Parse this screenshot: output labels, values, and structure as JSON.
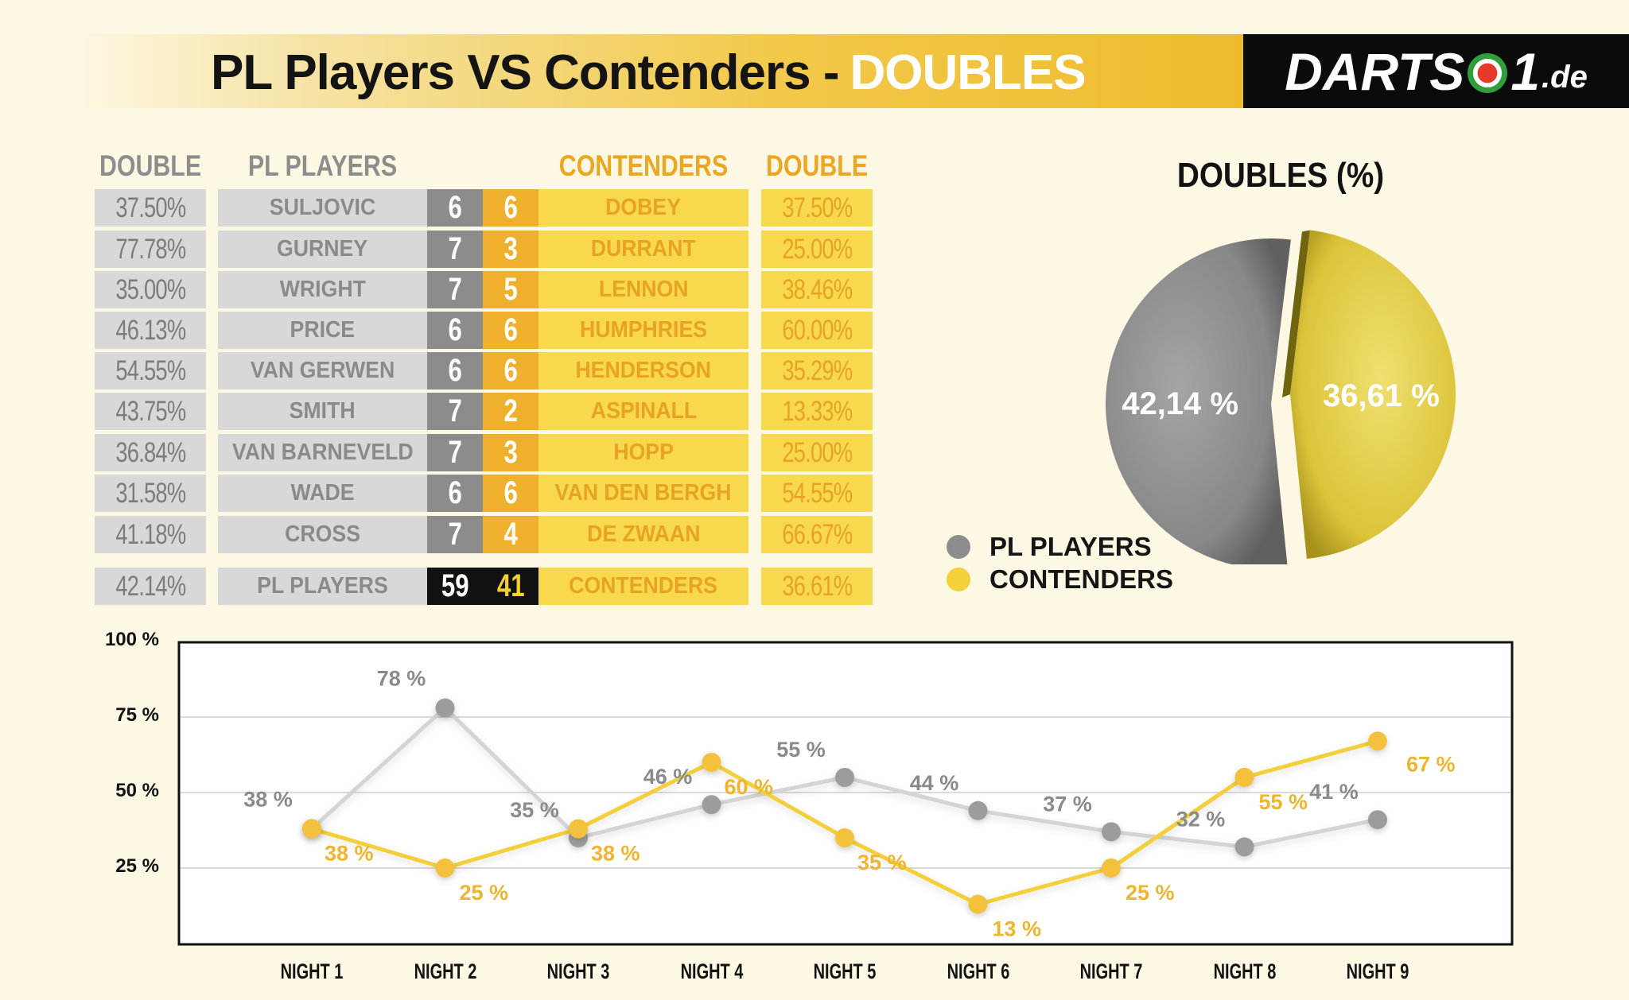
{
  "header": {
    "title_main": "PL Players VS Contenders -",
    "title_highlight": "DOUBLES",
    "logo_text_1": "DARTS",
    "logo_text_2": "1",
    "logo_text_3": ".de"
  },
  "table": {
    "headers": {
      "pl_double": "DOUBLE",
      "pl_players": "PL PLAYERS",
      "contenders": "CONTENDERS",
      "contenders_double": "DOUBLE"
    },
    "rows": [
      {
        "pl_pct": "37.50%",
        "pl_name": "SULJOVIC",
        "pl_score": "6",
        "c_score": "6",
        "c_name": "DOBEY",
        "c_pct": "37.50%"
      },
      {
        "pl_pct": "77.78%",
        "pl_name": "GURNEY",
        "pl_score": "7",
        "c_score": "3",
        "c_name": "DURRANT",
        "c_pct": "25.00%"
      },
      {
        "pl_pct": "35.00%",
        "pl_name": "WRIGHT",
        "pl_score": "7",
        "c_score": "5",
        "c_name": "LENNON",
        "c_pct": "38.46%"
      },
      {
        "pl_pct": "46.13%",
        "pl_name": "PRICE",
        "pl_score": "6",
        "c_score": "6",
        "c_name": "HUMPHRIES",
        "c_pct": "60.00%"
      },
      {
        "pl_pct": "54.55%",
        "pl_name": "VAN GERWEN",
        "pl_score": "6",
        "c_score": "6",
        "c_name": "HENDERSON",
        "c_pct": "35.29%"
      },
      {
        "pl_pct": "43.75%",
        "pl_name": "SMITH",
        "pl_score": "7",
        "c_score": "2",
        "c_name": "ASPINALL",
        "c_pct": "13.33%"
      },
      {
        "pl_pct": "36.84%",
        "pl_name": "VAN BARNEVELD",
        "pl_score": "7",
        "c_score": "3",
        "c_name": "HOPP",
        "c_pct": "25.00%"
      },
      {
        "pl_pct": "31.58%",
        "pl_name": "WADE",
        "pl_score": "6",
        "c_score": "6",
        "c_name": "VAN DEN BERGH",
        "c_pct": "54.55%"
      },
      {
        "pl_pct": "41.18%",
        "pl_name": "CROSS",
        "pl_score": "7",
        "c_score": "4",
        "c_name": "DE ZWAAN",
        "c_pct": "66.67%"
      }
    ],
    "total": {
      "pl_pct": "42.14%",
      "pl_name": "PL PLAYERS",
      "pl_score": "59",
      "c_score": "41",
      "c_name": "CONTENDERS",
      "c_pct": "36.61%"
    }
  },
  "colors": {
    "pl_players": "#8c8c8c",
    "contenders": "#f4d03a",
    "contenders_dark": "#efb02d",
    "background": "#fdf8e4"
  },
  "chart_data": [
    {
      "type": "pie",
      "title": "DOUBLES (%)",
      "labels": [
        "PL PLAYERS",
        "CONTENDERS"
      ],
      "values": [
        42.14,
        36.61
      ],
      "value_labels": [
        "42,14 %",
        "36,61 %"
      ],
      "colors": [
        "#8c8c8c",
        "#e3cc3c"
      ],
      "legend": [
        "PL PLAYERS",
        "CONTENDERS"
      ],
      "legend_position": "bottom-left"
    },
    {
      "type": "line",
      "categories": [
        "NIGHT 1",
        "NIGHT 2",
        "NIGHT 3",
        "NIGHT 4",
        "NIGHT 5",
        "NIGHT 6",
        "NIGHT 7",
        "NIGHT 8",
        "NIGHT 9"
      ],
      "yticks": [
        "100 %",
        "75 %",
        "50 %",
        "25 %"
      ],
      "ylim": [
        0,
        100
      ],
      "grid": true,
      "series": [
        {
          "key": "pl",
          "values": [
            38,
            78,
            35,
            46,
            55,
            44,
            37,
            32,
            41
          ],
          "labels": [
            "38 %",
            "78 %",
            "35 %",
            "46 %",
            "55 %",
            "44 %",
            "37 %",
            "32 %",
            "41 %"
          ],
          "color": "#9a9a9a"
        },
        {
          "key": "contenders",
          "values": [
            38,
            25,
            38,
            60,
            35,
            13,
            25,
            55,
            67
          ],
          "labels": [
            "38 %",
            "25 %",
            "38 %",
            "60 %",
            "35 %",
            "13 %",
            "25 %",
            "55 %",
            "67 %"
          ],
          "color": "#f0c13a"
        }
      ]
    }
  ]
}
